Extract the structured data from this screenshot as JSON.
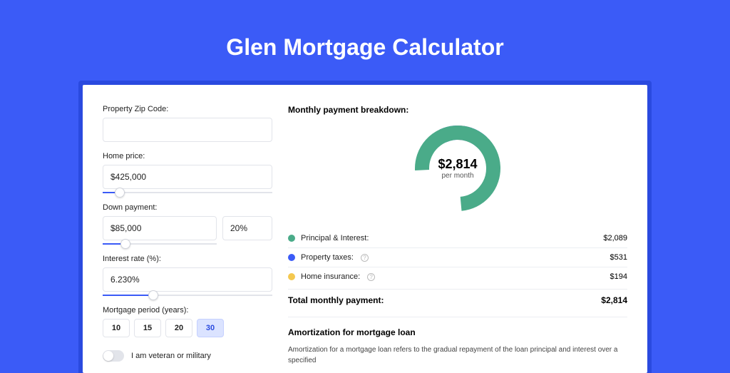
{
  "title": "Glen Mortgage Calculator",
  "form": {
    "zip": {
      "label": "Property Zip Code:",
      "value": ""
    },
    "home_price": {
      "label": "Home price:",
      "value": "$425,000",
      "slider_pct": 10
    },
    "down_payment": {
      "label": "Down payment:",
      "value": "$85,000",
      "pct_value": "20%",
      "slider_pct": 20
    },
    "interest_rate": {
      "label": "Interest rate (%):",
      "value": "6.230%",
      "slider_pct": 30
    },
    "period": {
      "label": "Mortgage period (years):",
      "options": [
        "10",
        "15",
        "20",
        "30"
      ],
      "selected": "30"
    },
    "veteran": {
      "label": "I am veteran or military",
      "checked": false
    }
  },
  "breakdown": {
    "title": "Monthly payment breakdown:",
    "center_amount": "$2,814",
    "center_sub": "per month",
    "items": [
      {
        "label": "Principal & Interest:",
        "value": "$2,089",
        "color": "#4aab89",
        "info": false,
        "pct": 74.2
      },
      {
        "label": "Property taxes:",
        "value": "$531",
        "color": "#3b5bf7",
        "info": true,
        "pct": 18.9
      },
      {
        "label": "Home insurance:",
        "value": "$194",
        "color": "#f4c84f",
        "info": true,
        "pct": 6.9
      }
    ],
    "total_label": "Total monthly payment:",
    "total_value": "$2,814"
  },
  "amortization": {
    "title": "Amortization for mortgage loan",
    "text": "Amortization for a mortgage loan refers to the gradual repayment of the loan principal and interest over a specified"
  },
  "donut": {
    "radius": 50,
    "stroke": 20,
    "background": "#ffffff"
  }
}
